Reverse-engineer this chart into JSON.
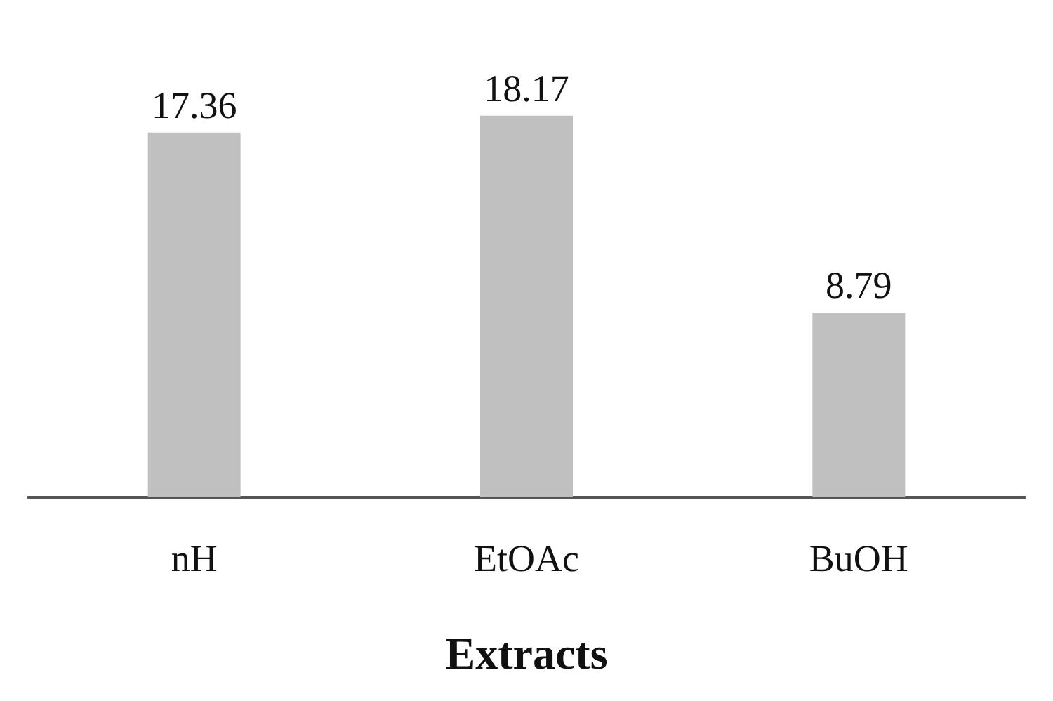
{
  "chart_data": {
    "type": "bar",
    "xlabel": "Extracts",
    "categories": [
      "nH",
      "EtOAc",
      "BuOH"
    ],
    "values": [
      17.36,
      18.17,
      8.79
    ],
    "color": "#c0c0c0",
    "data_labels": true
  }
}
